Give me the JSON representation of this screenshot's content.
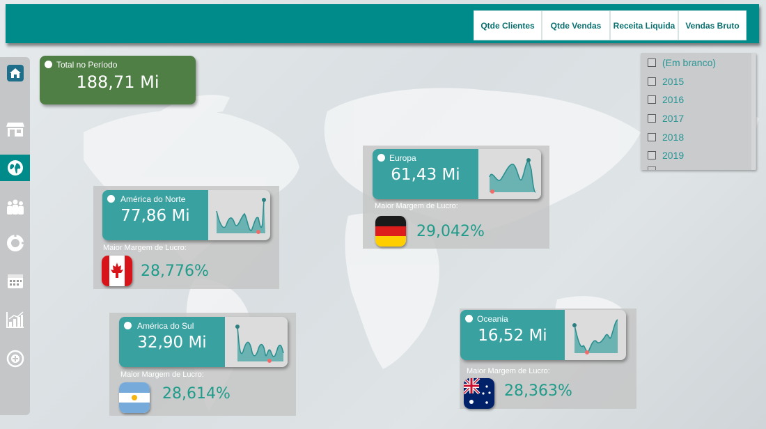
{
  "header": {
    "buttons": [
      {
        "label": "Qtde Clientes"
      },
      {
        "label": "Qtde Vendas"
      },
      {
        "label": "Receita Liquida"
      },
      {
        "label": "Vendas Bruto"
      }
    ]
  },
  "sidebar": {
    "items": [
      {
        "icon": "home-icon"
      },
      {
        "icon": "store-icon"
      },
      {
        "icon": "globe-icon",
        "active": true
      },
      {
        "icon": "people-icon"
      },
      {
        "icon": "donut-chart-icon"
      },
      {
        "icon": "calendar-icon"
      },
      {
        "icon": "bar-chart-icon"
      },
      {
        "icon": "target-icon"
      }
    ]
  },
  "total": {
    "label": "Total no Período",
    "value": "188,71 Mi"
  },
  "year_slicer": {
    "items": [
      "(Em branco)",
      "2015",
      "2016",
      "2017",
      "2018",
      "2019"
    ]
  },
  "regions": {
    "europa": {
      "name": "Europa",
      "value": "61,43 Mi",
      "margin_label": "Maior Margem de Lucro:",
      "margin_value": "29,042%",
      "flag": "germany-flag"
    },
    "america_norte": {
      "name": "América do Norte",
      "value": "77,86 Mi",
      "margin_label": "Maior Margem de Lucro:",
      "margin_value": "28,776%",
      "flag": "canada-flag"
    },
    "america_sul": {
      "name": "América do Sul",
      "value": "32,90 Mi",
      "margin_label": "Maior Margem de Lucro:",
      "margin_value": "28,614%",
      "flag": "argentina-flag"
    },
    "oceania": {
      "name": "Oceania",
      "value": "16,52 Mi",
      "margin_label": "Maior Margem de Lucro:",
      "margin_value": "28,363%",
      "flag": "australia-flag"
    }
  },
  "colors": {
    "accent": "#008b8b",
    "card": "#3aa1a1",
    "total_card": "#4f7f45",
    "margin_text": "#1f9b8a"
  }
}
